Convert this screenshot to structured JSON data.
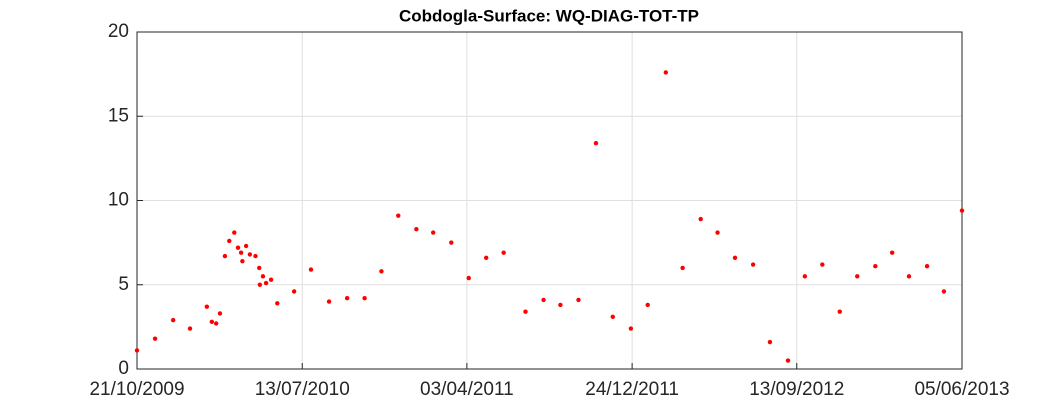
{
  "chart_data": {
    "type": "scatter",
    "title": "Cobdogla-Surface: WQ-DIAG-TOT-TP",
    "x": [
      "2009-10-21",
      "2009-11-19",
      "2009-12-18",
      "2010-01-14",
      "2010-02-10",
      "2010-02-18",
      "2010-02-25",
      "2010-03-03",
      "2010-03-11",
      "2010-03-18",
      "2010-03-26",
      "2010-04-01",
      "2010-04-06",
      "2010-04-08",
      "2010-04-14",
      "2010-04-20",
      "2010-04-29",
      "2010-05-05",
      "2010-05-06",
      "2010-05-11",
      "2010-05-16",
      "2010-05-24",
      "2010-06-03",
      "2010-06-30",
      "2010-07-27",
      "2010-08-25",
      "2010-09-23",
      "2010-10-21",
      "2010-11-17",
      "2010-12-14",
      "2011-01-12",
      "2011-02-08",
      "2011-03-09",
      "2011-04-06",
      "2011-05-04",
      "2011-06-01",
      "2011-07-06",
      "2011-08-04",
      "2011-08-31",
      "2011-09-29",
      "2011-10-27",
      "2011-11-23",
      "2011-12-22",
      "2012-01-18",
      "2012-02-16",
      "2012-03-14",
      "2012-04-12",
      "2012-05-09",
      "2012-06-06",
      "2012-07-05",
      "2012-08-01",
      "2012-08-30",
      "2012-09-26",
      "2012-10-24",
      "2012-11-21",
      "2012-12-19",
      "2013-01-17",
      "2013-02-13",
      "2013-03-12",
      "2013-04-10",
      "2013-05-07",
      "2013-06-05"
    ],
    "series": [
      {
        "color": "#ff0000",
        "values": [
          1.1,
          1.8,
          2.9,
          2.4,
          3.7,
          2.8,
          2.7,
          3.3,
          6.7,
          7.6,
          8.1,
          7.2,
          6.9,
          6.4,
          7.3,
          6.8,
          6.7,
          6.0,
          5.0,
          5.5,
          5.1,
          5.3,
          3.9,
          4.6,
          5.9,
          4.0,
          4.2,
          4.2,
          5.8,
          9.1,
          8.3,
          8.1,
          7.5,
          5.4,
          6.6,
          6.9,
          3.4,
          4.1,
          3.8,
          4.1,
          13.4,
          3.1,
          2.4,
          3.8,
          17.6,
          6.0,
          8.9,
          8.1,
          6.6,
          6.2,
          1.6,
          0.5,
          5.5,
          6.2,
          3.4,
          5.5,
          6.1,
          6.9,
          5.5,
          6.1,
          4.6,
          9.4
        ]
      }
    ],
    "xlim": [
      "2009-10-21",
      "2013-06-05"
    ],
    "xticks": [
      {
        "value": "2009-10-21",
        "label": "21/10/2009"
      },
      {
        "value": "2010-07-13",
        "label": "13/07/2010"
      },
      {
        "value": "2011-04-03",
        "label": "03/04/2011"
      },
      {
        "value": "2011-12-24",
        "label": "24/12/2011"
      },
      {
        "value": "2012-09-13",
        "label": "13/09/2012"
      },
      {
        "value": "2013-06-05",
        "label": "05/06/2013"
      }
    ],
    "ylim": [
      0,
      20
    ],
    "yticks": [
      0,
      5,
      10,
      15,
      20
    ],
    "grid": true
  }
}
